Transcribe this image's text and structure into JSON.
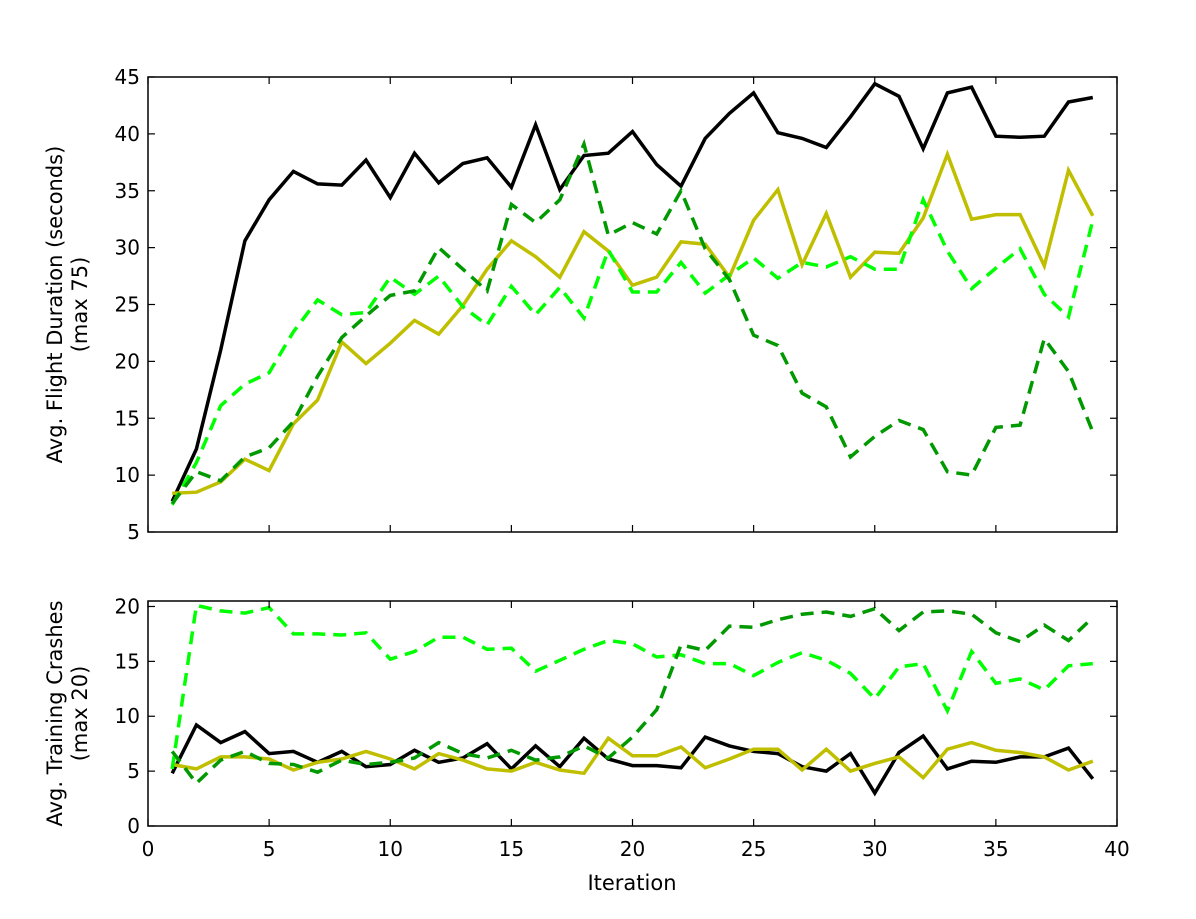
{
  "chart_data": [
    {
      "type": "line",
      "panel": "top",
      "xlabel": "",
      "ylabel": [
        "Avg. Flight Duration (seconds)",
        "(max 75)"
      ],
      "xlim": [
        0,
        40
      ],
      "ylim": [
        5,
        45
      ],
      "xticks": [
        0,
        5,
        10,
        15,
        20,
        25,
        30,
        35,
        40
      ],
      "yticks": [
        5,
        10,
        15,
        20,
        25,
        30,
        35,
        40,
        45
      ],
      "grid": false,
      "x": [
        1,
        2,
        3,
        4,
        5,
        6,
        7,
        8,
        9,
        10,
        11,
        12,
        13,
        14,
        15,
        16,
        17,
        18,
        19,
        20,
        21,
        22,
        23,
        24,
        25,
        26,
        27,
        28,
        29,
        30,
        31,
        32,
        33,
        34,
        35,
        36,
        37,
        38,
        39
      ],
      "series": [
        {
          "color": "#000000",
          "dash": "solid",
          "values": [
            7.7,
            12.3,
            21.0,
            30.6,
            34.2,
            36.7,
            35.6,
            35.5,
            37.7,
            34.4,
            38.3,
            35.7,
            37.4,
            37.9,
            35.3,
            40.8,
            35.1,
            38.1,
            38.3,
            40.2,
            37.3,
            35.4,
            39.6,
            41.8,
            43.6,
            40.1,
            39.6,
            38.8,
            41.5,
            44.4,
            43.3,
            38.7,
            43.6,
            44.1,
            39.8,
            39.7,
            39.8,
            42.8,
            43.2
          ]
        },
        {
          "color": "#bfbf00",
          "dash": "solid",
          "values": [
            8.4,
            8.5,
            9.4,
            11.4,
            10.4,
            14.5,
            16.6,
            21.7,
            19.8,
            21.6,
            23.6,
            22.4,
            24.9,
            28.1,
            30.6,
            29.2,
            27.4,
            31.4,
            29.7,
            26.7,
            27.4,
            30.5,
            30.3,
            27.4,
            32.4,
            35.1,
            28.5,
            33.0,
            27.4,
            29.6,
            29.5,
            32.6,
            38.2,
            32.5,
            32.9,
            32.9,
            28.4,
            36.8,
            32.8
          ]
        },
        {
          "color": "#00ff00",
          "dash": "dashed",
          "values": [
            7.4,
            11.1,
            16.1,
            18.0,
            19.0,
            22.6,
            25.4,
            24.1,
            24.3,
            27.4,
            25.9,
            27.5,
            24.8,
            23.2,
            26.6,
            24.1,
            26.5,
            23.8,
            29.8,
            26.1,
            26.1,
            28.7,
            26.0,
            27.6,
            29.1,
            27.3,
            28.7,
            28.3,
            29.2,
            28.1,
            28.1,
            34.2,
            29.7,
            26.4,
            28.2,
            29.9,
            25.9,
            23.9,
            32.4
          ]
        },
        {
          "color": "#009900",
          "dash": "dashed",
          "values": [
            7.5,
            10.3,
            9.5,
            11.6,
            12.4,
            14.7,
            18.7,
            22.1,
            24.0,
            25.8,
            26.2,
            30.0,
            28.1,
            26.2,
            33.8,
            32.2,
            34.2,
            39.1,
            31.1,
            32.2,
            31.2,
            35.0,
            29.9,
            27.2,
            22.3,
            21.4,
            17.2,
            16.0,
            11.6,
            13.4,
            14.8,
            14.0,
            10.3,
            10.0,
            14.2,
            14.4,
            22.0,
            19.1,
            13.8
          ]
        }
      ]
    },
    {
      "type": "line",
      "panel": "bottom",
      "xlabel": "Iteration",
      "ylabel": [
        "Avg. Training Crashes",
        "(max 20)"
      ],
      "xlim": [
        0,
        40
      ],
      "ylim": [
        0,
        20.5
      ],
      "xticks": [
        0,
        5,
        10,
        15,
        20,
        25,
        30,
        35,
        40
      ],
      "yticks": [
        0,
        5,
        10,
        15,
        20
      ],
      "grid": false,
      "x": [
        1,
        2,
        3,
        4,
        5,
        6,
        7,
        8,
        9,
        10,
        11,
        12,
        13,
        14,
        15,
        16,
        17,
        18,
        19,
        20,
        21,
        22,
        23,
        24,
        25,
        26,
        27,
        28,
        29,
        30,
        31,
        32,
        33,
        34,
        35,
        36,
        37,
        38,
        39
      ],
      "series": [
        {
          "color": "#000000",
          "dash": "solid",
          "values": [
            4.8,
            9.2,
            7.6,
            8.6,
            6.6,
            6.8,
            5.8,
            6.8,
            5.4,
            5.6,
            6.9,
            5.8,
            6.2,
            7.5,
            5.2,
            7.3,
            5.4,
            8.0,
            6.1,
            5.5,
            5.5,
            5.3,
            8.1,
            7.3,
            6.8,
            6.6,
            5.4,
            5.0,
            6.6,
            3.0,
            6.7,
            8.2,
            5.2,
            5.9,
            5.8,
            6.3,
            6.3,
            7.1,
            4.3
          ]
        },
        {
          "color": "#bfbf00",
          "dash": "solid",
          "values": [
            5.6,
            5.2,
            6.3,
            6.3,
            6.1,
            5.1,
            5.8,
            6.1,
            6.8,
            6.1,
            5.2,
            6.6,
            6.0,
            5.2,
            5.0,
            5.8,
            5.1,
            4.8,
            8.0,
            6.4,
            6.4,
            7.2,
            5.3,
            6.1,
            7.0,
            7.0,
            5.1,
            7.0,
            5.0,
            5.7,
            6.3,
            4.4,
            7.0,
            7.6,
            6.9,
            6.7,
            6.3,
            5.1,
            5.9
          ]
        },
        {
          "color": "#00ff00",
          "dash": "dashed",
          "values": [
            5.2,
            20.1,
            19.6,
            19.4,
            19.9,
            17.5,
            17.5,
            17.4,
            17.6,
            15.2,
            15.9,
            17.2,
            17.2,
            16.1,
            16.2,
            14.1,
            15.1,
            16.1,
            16.9,
            16.6,
            15.4,
            15.6,
            14.8,
            14.8,
            13.7,
            14.9,
            15.8,
            15.1,
            13.9,
            11.6,
            14.5,
            14.8,
            10.5,
            15.9,
            13.0,
            13.4,
            12.4,
            14.6,
            14.8
          ]
        },
        {
          "color": "#009900",
          "dash": "dashed",
          "values": [
            6.8,
            3.9,
            6.0,
            6.8,
            5.7,
            5.6,
            4.9,
            6.0,
            5.6,
            5.8,
            6.2,
            7.6,
            6.6,
            6.2,
            6.9,
            6.0,
            6.3,
            7.3,
            6.2,
            8.1,
            10.6,
            16.5,
            16.0,
            18.2,
            18.1,
            18.8,
            19.3,
            19.5,
            19.1,
            19.8,
            17.8,
            19.5,
            19.6,
            19.3,
            17.6,
            16.8,
            18.3,
            16.9,
            19.0
          ]
        }
      ]
    }
  ]
}
